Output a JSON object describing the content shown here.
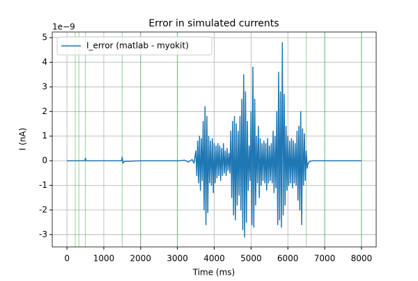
{
  "chart_data": {
    "type": "line",
    "title": "Error in simulated currents",
    "xlabel": "Time (ms)",
    "ylabel": "I (nA)",
    "y_offset_label": "1e−9",
    "x": [
      0,
      480,
      500,
      520,
      1480,
      1500,
      1520,
      1560,
      1700,
      2000,
      3000,
      3200,
      3300,
      3400,
      3450,
      3500,
      3525,
      3550,
      3575,
      3600,
      3625,
      3650,
      3675,
      3700,
      3725,
      3750,
      3775,
      3800,
      3825,
      3850,
      3875,
      3900,
      3925,
      3950,
      3975,
      4000,
      4025,
      4050,
      4075,
      4100,
      4125,
      4150,
      4175,
      4200,
      4225,
      4250,
      4275,
      4300,
      4325,
      4350,
      4375,
      4400,
      4425,
      4450,
      4475,
      4500,
      4525,
      4550,
      4575,
      4600,
      4625,
      4650,
      4675,
      4700,
      4725,
      4750,
      4775,
      4800,
      4825,
      4850,
      4875,
      4900,
      4925,
      4950,
      4975,
      5000,
      5025,
      5050,
      5075,
      5100,
      5125,
      5150,
      5175,
      5200,
      5225,
      5250,
      5275,
      5300,
      5325,
      5350,
      5375,
      5400,
      5425,
      5450,
      5475,
      5500,
      5525,
      5550,
      5575,
      5600,
      5625,
      5650,
      5675,
      5700,
      5725,
      5750,
      5775,
      5800,
      5825,
      5850,
      5875,
      5900,
      5925,
      5950,
      5975,
      6000,
      6025,
      6050,
      6075,
      6100,
      6125,
      6150,
      6175,
      6200,
      6225,
      6250,
      6275,
      6300,
      6325,
      6350,
      6375,
      6400,
      6425,
      6450,
      6475,
      6500,
      6525,
      6550,
      6600,
      6700,
      8000
    ],
    "series": [
      {
        "name": "I_error (matlab - myokit)",
        "color": "#1f77b4",
        "values": [
          0,
          0,
          0.1,
          0,
          0,
          0.15,
          -0.1,
          -0.02,
          -0.02,
          0,
          0,
          0.02,
          -0.05,
          0.05,
          -0.1,
          0.4,
          -0.6,
          0.8,
          -0.9,
          1.0,
          -1.2,
          0.9,
          -0.8,
          1.6,
          -2.0,
          2.2,
          -2.6,
          1.8,
          -2.1,
          1.0,
          -0.9,
          0.8,
          -1.0,
          0.9,
          -1.3,
          0.7,
          -0.9,
          0.6,
          -0.7,
          0.7,
          -0.6,
          0.6,
          -0.8,
          0.5,
          -0.6,
          0.7,
          -0.5,
          0.4,
          -0.6,
          0.5,
          -0.4,
          0.3,
          -0.5,
          1.2,
          -1.5,
          1.6,
          -2.2,
          1.8,
          -2.4,
          1.5,
          -1.8,
          1.2,
          -1.4,
          1.8,
          -2.0,
          2.5,
          -2.8,
          3.5,
          -3.1,
          2.8,
          -2.5,
          1.6,
          -1.2,
          0.6,
          -0.8,
          2.0,
          -2.6,
          3.8,
          -2.7,
          2.5,
          -1.8,
          1.0,
          -0.9,
          1.4,
          -1.5,
          0.9,
          -1.0,
          0.7,
          -0.8,
          0.8,
          -0.9,
          0.7,
          -1.2,
          0.9,
          -0.9,
          0.6,
          -0.8,
          0.7,
          -0.9,
          1.2,
          -1.3,
          1.0,
          -1.1,
          2.0,
          -2.6,
          3.6,
          -2.4,
          2.8,
          -2.7,
          4.8,
          -2.2,
          2.7,
          -1.8,
          1.4,
          -1.2,
          1.0,
          -1.0,
          0.8,
          -0.9,
          0.9,
          -1.1,
          0.8,
          -0.9,
          0.7,
          -1.0,
          1.2,
          -1.6,
          1.4,
          -2.0,
          2.0,
          -2.6,
          1.3,
          -1.0,
          1.1,
          -0.8,
          0.4,
          -0.3,
          -0.1,
          -0.02,
          0,
          0
        ]
      }
    ],
    "vlines": [
      225,
      325,
      500,
      1500,
      2000,
      3000,
      6500,
      7000,
      8000
    ],
    "vline_color": "#2ca02c",
    "xlim": [
      -400,
      8400
    ],
    "xticks": [
      0,
      1000,
      2000,
      3000,
      4000,
      5000,
      6000,
      7000,
      8000
    ],
    "ylim": [
      -3.5,
      5.23
    ],
    "yticks": [
      -3,
      -2,
      -1,
      0,
      1,
      2,
      3,
      4,
      5
    ],
    "grid": true,
    "legend": "upper left"
  }
}
